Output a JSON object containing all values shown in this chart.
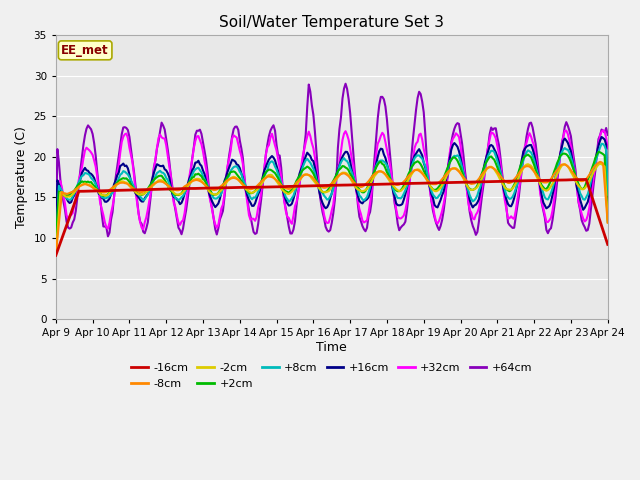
{
  "title": "Soil/Water Temperature Set 3",
  "xlabel": "Time",
  "ylabel": "Temperature (C)",
  "ylim": [
    0,
    35
  ],
  "yticks": [
    0,
    5,
    10,
    15,
    20,
    25,
    30,
    35
  ],
  "x_labels": [
    "Apr 9",
    "Apr 10",
    "Apr 11",
    "Apr 12",
    "Apr 13",
    "Apr 14",
    "Apr 15",
    "Apr 16",
    "Apr 17",
    "Apr 18",
    "Apr 19",
    "Apr 20",
    "Apr 21",
    "Apr 22",
    "Apr 23",
    "Apr 24"
  ],
  "annotation": "EE_met",
  "annotation_color": "#880000",
  "annotation_bg": "#ffffcc",
  "annotation_border": "#aaa800",
  "fig_bg": "#f0f0f0",
  "plot_bg": "#e8e8e8",
  "series": {
    "-16cm": {
      "color": "#cc0000",
      "lw": 2.0,
      "zorder": 8
    },
    "-8cm": {
      "color": "#ff8800",
      "lw": 1.5,
      "zorder": 7
    },
    "-2cm": {
      "color": "#ddcc00",
      "lw": 1.5,
      "zorder": 6
    },
    "+2cm": {
      "color": "#00bb00",
      "lw": 1.5,
      "zorder": 5
    },
    "+8cm": {
      "color": "#00bbbb",
      "lw": 1.5,
      "zorder": 5
    },
    "+16cm": {
      "color": "#000088",
      "lw": 1.5,
      "zorder": 5
    },
    "+32cm": {
      "color": "#ff00ff",
      "lw": 1.5,
      "zorder": 4
    },
    "+64cm": {
      "color": "#8800bb",
      "lw": 1.5,
      "zorder": 3
    }
  }
}
